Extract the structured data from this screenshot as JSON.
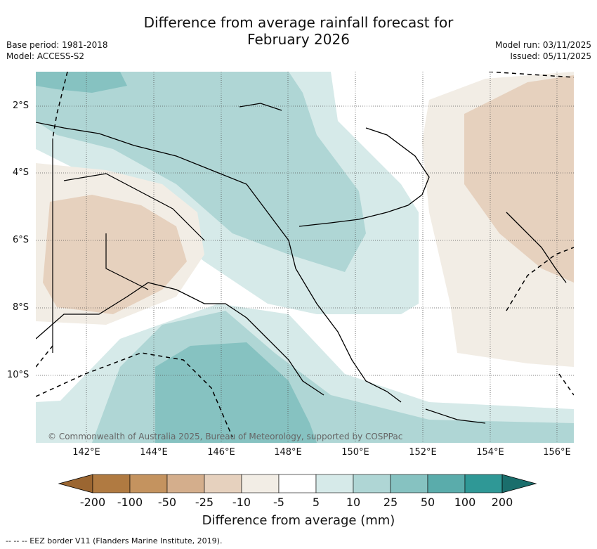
{
  "title_line1": "Difference from average rainfall forecast for",
  "title_line2": "February 2026",
  "base_period": "Base period: 1981-2018",
  "model": "Model: ACCESS-S2",
  "model_run": "Model run: 03/11/2025",
  "issued": "Issued: 05/11/2025",
  "lat_labels": [
    "2°S",
    "4°S",
    "6°S",
    "8°S",
    "10°S"
  ],
  "lon_labels": [
    "142°E",
    "144°E",
    "146°E",
    "148°E",
    "150°E",
    "152°E",
    "154°E",
    "156°E"
  ],
  "copyright": "© Commonwealth of Australia 2025, Bureau of Meteorology, supported by COSPPac",
  "colorbar": {
    "ticks": [
      "-200",
      "-100",
      "-50",
      "-25",
      "-10",
      "-5",
      "5",
      "10",
      "25",
      "50",
      "100",
      "200"
    ],
    "colors": [
      "#9b6631",
      "#b07a41",
      "#c4935f",
      "#d4ae8c",
      "#e6d1be",
      "#f2ede5",
      "#ffffff",
      "#d6eae9",
      "#afd6d5",
      "#86c2c1",
      "#5aacab",
      "#2f9896",
      "#1a6e6c"
    ],
    "title": "Difference from average (mm)"
  },
  "legend_line": "--  --  -- EEZ border V11 (Flanders Marine Institute, 2019)."
}
